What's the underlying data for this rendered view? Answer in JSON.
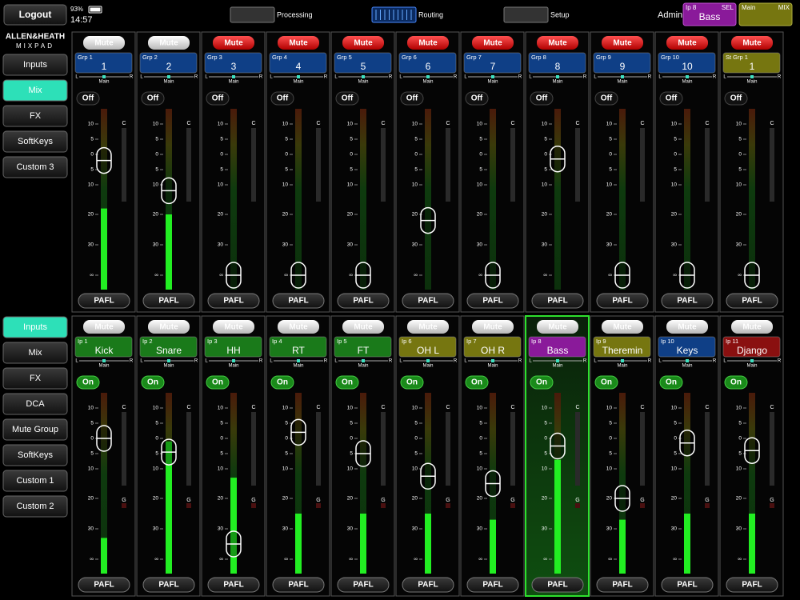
{
  "header": {
    "logout": "Logout",
    "battery": "93%",
    "time": "14:57",
    "tabs": [
      {
        "label": "Processing",
        "active": false
      },
      {
        "label": "Routing",
        "active": true
      },
      {
        "label": "Setup",
        "active": false
      }
    ],
    "user": "Admin",
    "selected": {
      "tag": "Ip 8",
      "sel": "SEL",
      "name": "Bass"
    },
    "mix": {
      "label": "Main",
      "tag": "MIX"
    }
  },
  "brand": {
    "name": "ALLEN&HEATH",
    "product": "MIXPAD"
  },
  "fader_scale": [
    10,
    5,
    0,
    {
      "value": -5,
      "label": "5"
    },
    {
      "value": -10,
      "label": "10"
    },
    {
      "value": -20,
      "label": "20"
    },
    {
      "value": -30,
      "label": "30"
    },
    {
      "value": null,
      "label": "∞"
    }
  ],
  "sections": [
    {
      "nav": [
        "Inputs",
        "Mix",
        "FX",
        "SoftKeys",
        "Custom 3"
      ],
      "nav_active": 1,
      "meter_labels": [
        "C"
      ],
      "strips": [
        {
          "mute": "Mute",
          "muted": false,
          "tag": "Grp 1",
          "name": "1",
          "color": "#0f3f86",
          "pan": "Main",
          "left": "L",
          "right": "R",
          "switch": "Off",
          "on": false,
          "fader": -2,
          "meter": -18,
          "pafl": "PAFL",
          "selected": false
        },
        {
          "mute": "Mute",
          "muted": false,
          "tag": "Grp 2",
          "name": "2",
          "color": "#0f3f86",
          "pan": "Main",
          "left": "L",
          "right": "R",
          "switch": "Off",
          "on": false,
          "fader": -12,
          "meter": -20,
          "pafl": "PAFL",
          "selected": false
        },
        {
          "mute": "Mute",
          "muted": true,
          "tag": "Grp 3",
          "name": "3",
          "color": "#0f3f86",
          "pan": "Main",
          "left": "L",
          "right": "R",
          "switch": "Off",
          "on": false,
          "fader": null,
          "meter": null,
          "pafl": "PAFL",
          "selected": false
        },
        {
          "mute": "Mute",
          "muted": true,
          "tag": "Grp 4",
          "name": "4",
          "color": "#0f3f86",
          "pan": "Main",
          "left": "L",
          "right": "R",
          "switch": "Off",
          "on": false,
          "fader": null,
          "meter": null,
          "pafl": "PAFL",
          "selected": false
        },
        {
          "mute": "Mute",
          "muted": true,
          "tag": "Grp 5",
          "name": "5",
          "color": "#0f3f86",
          "pan": "Main",
          "left": "L",
          "right": "R",
          "switch": "Off",
          "on": false,
          "fader": null,
          "meter": null,
          "pafl": "PAFL",
          "selected": false
        },
        {
          "mute": "Mute",
          "muted": true,
          "tag": "Grp 6",
          "name": "6",
          "color": "#0f3f86",
          "pan": "Main",
          "left": "L",
          "right": "R",
          "switch": "Off",
          "on": false,
          "fader": -22,
          "meter": null,
          "pafl": "PAFL",
          "selected": false
        },
        {
          "mute": "Mute",
          "muted": true,
          "tag": "Grp 7",
          "name": "7",
          "color": "#0f3f86",
          "pan": "Main",
          "left": "L",
          "right": "R",
          "switch": "Off",
          "on": false,
          "fader": null,
          "meter": null,
          "pafl": "PAFL",
          "selected": false
        },
        {
          "mute": "Mute",
          "muted": true,
          "tag": "Grp 8",
          "name": "8",
          "color": "#0f3f86",
          "pan": "Main",
          "left": "L",
          "right": "R",
          "switch": "Off",
          "on": false,
          "fader": -1.5,
          "meter": null,
          "pafl": "PAFL",
          "selected": false
        },
        {
          "mute": "Mute",
          "muted": true,
          "tag": "Grp 9",
          "name": "9",
          "color": "#0f3f86",
          "pan": "Main",
          "left": "L",
          "right": "R",
          "switch": "Off",
          "on": false,
          "fader": null,
          "meter": null,
          "pafl": "PAFL",
          "selected": false
        },
        {
          "mute": "Mute",
          "muted": true,
          "tag": "Grp 10",
          "name": "10",
          "color": "#0f3f86",
          "pan": "Main",
          "left": "L",
          "right": "R",
          "switch": "Off",
          "on": false,
          "fader": null,
          "meter": null,
          "pafl": "PAFL",
          "selected": false
        },
        {
          "mute": "Mute",
          "muted": true,
          "tag": "St Grp 1",
          "name": "1",
          "color": "#767610",
          "pan": "Main",
          "left": "L",
          "right": "R",
          "switch": "Off",
          "on": false,
          "fader": null,
          "meter": null,
          "pafl": "PAFL",
          "selected": false
        }
      ]
    },
    {
      "nav": [
        "Inputs",
        "Mix",
        "FX",
        "DCA",
        "Mute Group",
        "SoftKeys",
        "Custom 1",
        "Custom 2"
      ],
      "nav_active": 0,
      "meter_labels": [
        "C",
        "G"
      ],
      "strips": [
        {
          "mute": "Mute",
          "muted": false,
          "tag": "Ip 1",
          "name": "Kick",
          "color": "#1a7a1a",
          "pan": "Main",
          "left": "L",
          "right": "R",
          "switch": "On",
          "on": true,
          "fader": 0,
          "meter": -33,
          "pafl": "PAFL",
          "selected": false
        },
        {
          "mute": "Mute",
          "muted": false,
          "tag": "Ip 2",
          "name": "Snare",
          "color": "#1a7a1a",
          "pan": "Main",
          "left": "L",
          "right": "R",
          "switch": "On",
          "on": true,
          "fader": -4.5,
          "meter": -1,
          "pafl": "PAFL",
          "selected": false
        },
        {
          "mute": "Mute",
          "muted": false,
          "tag": "Ip 3",
          "name": "HH",
          "color": "#1a7a1a",
          "pan": "Main",
          "left": "L",
          "right": "R",
          "switch": "On",
          "on": true,
          "fader": -35,
          "meter": -13,
          "pafl": "PAFL",
          "selected": false
        },
        {
          "mute": "Mute",
          "muted": false,
          "tag": "Ip 4",
          "name": "RT",
          "color": "#1a7a1a",
          "pan": "Main",
          "left": "L",
          "right": "R",
          "switch": "On",
          "on": true,
          "fader": 2,
          "meter": -25,
          "pafl": "PAFL",
          "selected": false
        },
        {
          "mute": "Mute",
          "muted": false,
          "tag": "Ip 5",
          "name": "FT",
          "color": "#1a7a1a",
          "pan": "Main",
          "left": "L",
          "right": "R",
          "switch": "On",
          "on": true,
          "fader": -5,
          "meter": -25,
          "pafl": "PAFL",
          "selected": false
        },
        {
          "mute": "Mute",
          "muted": false,
          "tag": "Ip 6",
          "name": "OH L",
          "color": "#767610",
          "pan": "Main",
          "left": "L",
          "right": "R",
          "switch": "On",
          "on": true,
          "fader": -12.5,
          "meter": -25,
          "pafl": "PAFL",
          "selected": false
        },
        {
          "mute": "Mute",
          "muted": false,
          "tag": "Ip 7",
          "name": "OH R",
          "color": "#767610",
          "pan": "Main",
          "left": "L",
          "right": "R",
          "switch": "On",
          "on": true,
          "fader": -15,
          "meter": -27,
          "pafl": "PAFL",
          "selected": false
        },
        {
          "mute": "Mute",
          "muted": false,
          "tag": "Ip 8",
          "name": "Bass",
          "color": "#8a1a9a",
          "pan": "Main",
          "left": "L",
          "right": "R",
          "switch": "On",
          "on": true,
          "fader": -2.5,
          "meter": -7,
          "pafl": "PAFL",
          "selected": true
        },
        {
          "mute": "Mute",
          "muted": false,
          "tag": "Ip 9",
          "name": "Theremin",
          "color": "#767610",
          "pan": "Main",
          "left": "L",
          "right": "R",
          "switch": "On",
          "on": true,
          "fader": -20,
          "meter": -27,
          "pafl": "PAFL",
          "selected": false
        },
        {
          "mute": "Mute",
          "muted": false,
          "tag": "Ip 10",
          "name": "Keys",
          "color": "#0f3f86",
          "pan": "Main",
          "left": "L",
          "right": "R",
          "switch": "On",
          "on": true,
          "fader": -1.5,
          "meter": -25,
          "pafl": "PAFL",
          "selected": false
        },
        {
          "mute": "Mute",
          "muted": false,
          "tag": "Ip 11",
          "name": "Django",
          "color": "#8a1010",
          "pan": "Main",
          "left": "L",
          "right": "R",
          "switch": "On",
          "on": true,
          "fader": -4,
          "meter": -25,
          "pafl": "PAFL",
          "selected": false
        }
      ]
    }
  ]
}
